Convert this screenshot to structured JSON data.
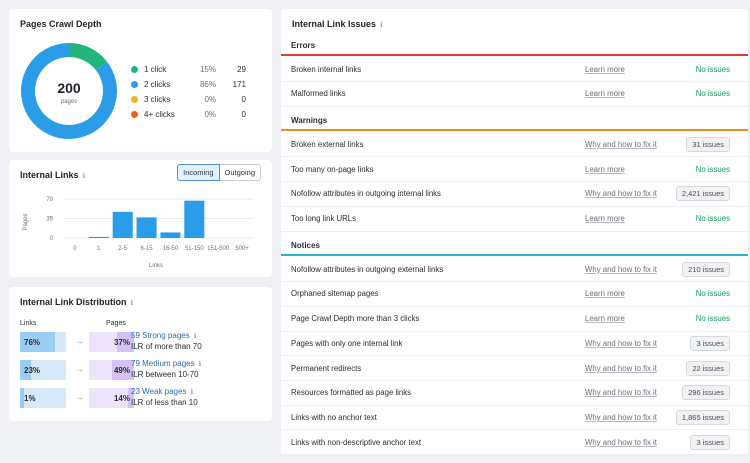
{
  "crawl_depth": {
    "title": "Pages Crawl Depth",
    "total": "200",
    "total_label": "pages",
    "items": [
      {
        "label": "1 click",
        "pct": "15%",
        "count": "29",
        "color": "#21b57a"
      },
      {
        "label": "2 clicks",
        "pct": "86%",
        "count": "171",
        "color": "#2b9de8"
      },
      {
        "label": "3 clicks",
        "pct": "0%",
        "count": "0",
        "color": "#f5b31b"
      },
      {
        "label": "4+ clicks",
        "pct": "0%",
        "count": "0",
        "color": "#e8632b"
      }
    ]
  },
  "internal_links": {
    "title": "Internal Links",
    "tabs": [
      "Incoming",
      "Outgoing"
    ],
    "active_tab": "Incoming",
    "chart_data": {
      "type": "bar",
      "categories": [
        "0",
        "1",
        "2-5",
        "6-15",
        "16-50",
        "51-150",
        "151-500",
        "500+"
      ],
      "values": [
        0,
        2,
        47,
        37,
        10,
        67,
        0,
        0
      ],
      "ylabel": "Pages",
      "xlabel": "Links",
      "yticks": [
        "0",
        "35",
        "70"
      ],
      "ylim": [
        0,
        70
      ],
      "color": "#2b9de8"
    }
  },
  "distribution": {
    "title": "Internal Link Distribution",
    "links_header": "Links",
    "pages_header": "Pages",
    "rows": [
      {
        "links_pct": "76%",
        "links_fill": 0.76,
        "pages_pct": "37%",
        "pages_fill": 0.37,
        "title": "59 Strong pages",
        "sub": "ILR of more than 70"
      },
      {
        "links_pct": "23%",
        "links_fill": 0.23,
        "pages_pct": "49%",
        "pages_fill": 0.49,
        "title": "79 Medium pages",
        "sub": "ILR between 10-70"
      },
      {
        "links_pct": "1%",
        "links_fill": 0.01,
        "pages_pct": "14%",
        "pages_fill": 0.14,
        "title": "23 Weak pages",
        "sub": "ILR of less than 10"
      }
    ]
  },
  "issues": {
    "title": "Internal Link Issues",
    "sections": [
      {
        "name": "Errors",
        "color": "#e53935",
        "rows": [
          {
            "name": "Broken internal links",
            "link": "Learn more",
            "status": "No issues",
            "ok": true
          },
          {
            "name": "Malformed links",
            "link": "Learn more",
            "status": "No issues",
            "ok": true
          }
        ]
      },
      {
        "name": "Warnings",
        "color": "#f08a24",
        "rows": [
          {
            "name": "Broken external links",
            "link": "Why and how to fix it",
            "status": "31 issues",
            "ok": false
          },
          {
            "name": "Too many on-page links",
            "link": "Learn more",
            "status": "No issues",
            "ok": true
          },
          {
            "name": "Nofollow attributes in outgoing internal links",
            "link": "Why and how to fix it",
            "status": "2,421 issues",
            "ok": false
          },
          {
            "name": "Too long link URLs",
            "link": "Learn more",
            "status": "No issues",
            "ok": true
          }
        ]
      },
      {
        "name": "Notices",
        "color": "#2bb0d8",
        "rows": [
          {
            "name": "Nofollow attributes in outgoing external links",
            "link": "Why and how to fix it",
            "status": "210 issues",
            "ok": false
          },
          {
            "name": "Orphaned sitemap pages",
            "link": "Learn more",
            "status": "No issues",
            "ok": true
          },
          {
            "name": "Page Crawl Depth more than 3 clicks",
            "link": "Learn more",
            "status": "No issues",
            "ok": true
          },
          {
            "name": "Pages with only one internal link",
            "link": "Why and how to fix it",
            "status": "3 issues",
            "ok": false
          },
          {
            "name": "Permanent redirects",
            "link": "Why and how to fix it",
            "status": "22 issues",
            "ok": false
          },
          {
            "name": "Resources formatted as page links",
            "link": "Why and how to fix it",
            "status": "296 issues",
            "ok": false
          },
          {
            "name": "Links with no anchor text",
            "link": "Why and how to fix it",
            "status": "1,865 issues",
            "ok": false
          },
          {
            "name": "Links with non-descriptive anchor text",
            "link": "Why and how to fix it",
            "status": "3 issues",
            "ok": false
          }
        ]
      }
    ]
  }
}
